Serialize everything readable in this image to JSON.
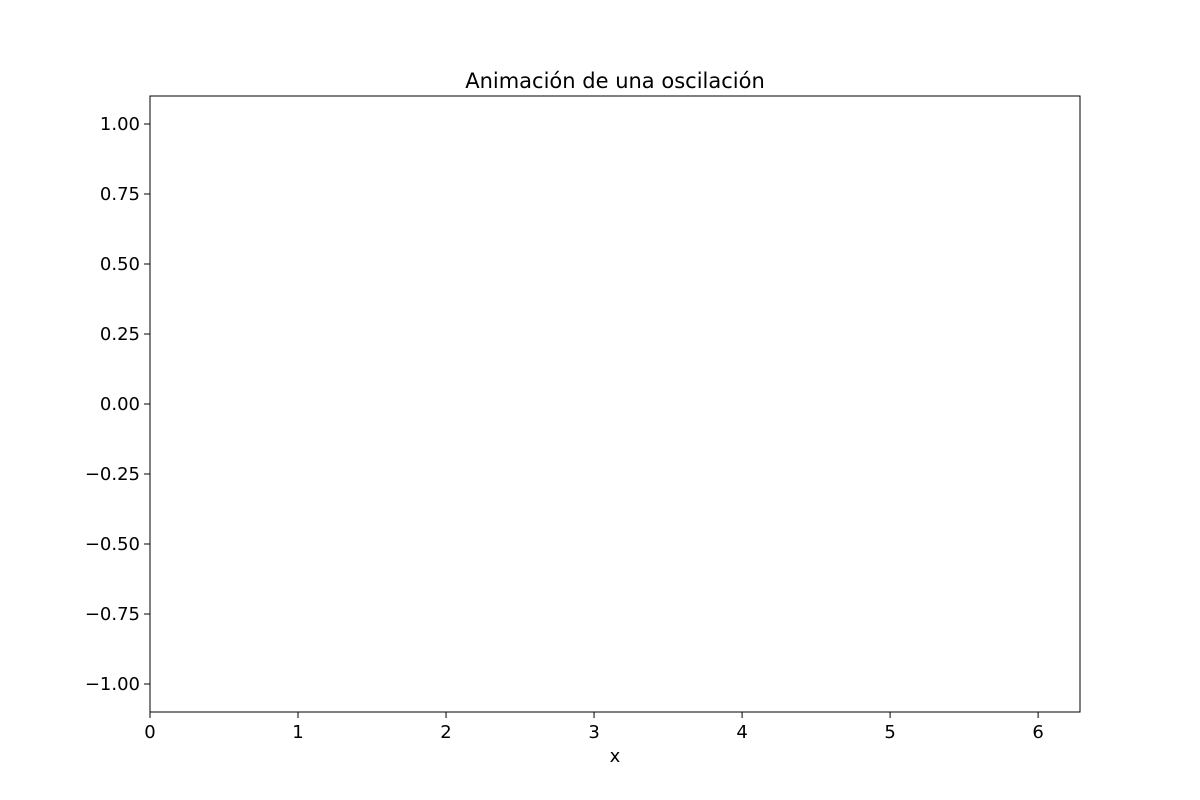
{
  "chart_data": {
    "type": "line",
    "title": "Animación de una oscilación",
    "xlabel": "x",
    "ylabel": "",
    "xlim": [
      0,
      6.283
    ],
    "ylim": [
      -1.1,
      1.1
    ],
    "x_ticks": [
      0,
      1,
      2,
      3,
      4,
      5,
      6
    ],
    "x_tick_labels": [
      "0",
      "1",
      "2",
      "3",
      "4",
      "5",
      "6"
    ],
    "y_ticks": [
      1.0,
      0.75,
      0.5,
      0.25,
      0.0,
      -0.25,
      -0.5,
      -0.75,
      -1.0
    ],
    "y_tick_labels": [
      "1.00",
      "0.75",
      "0.50",
      "0.25",
      "0.00",
      "−0.25",
      "−0.50",
      "−0.75",
      "−1.00"
    ],
    "grid": false,
    "series": [
      {
        "x": [],
        "y": [],
        "color": "#1f77b4"
      }
    ]
  }
}
